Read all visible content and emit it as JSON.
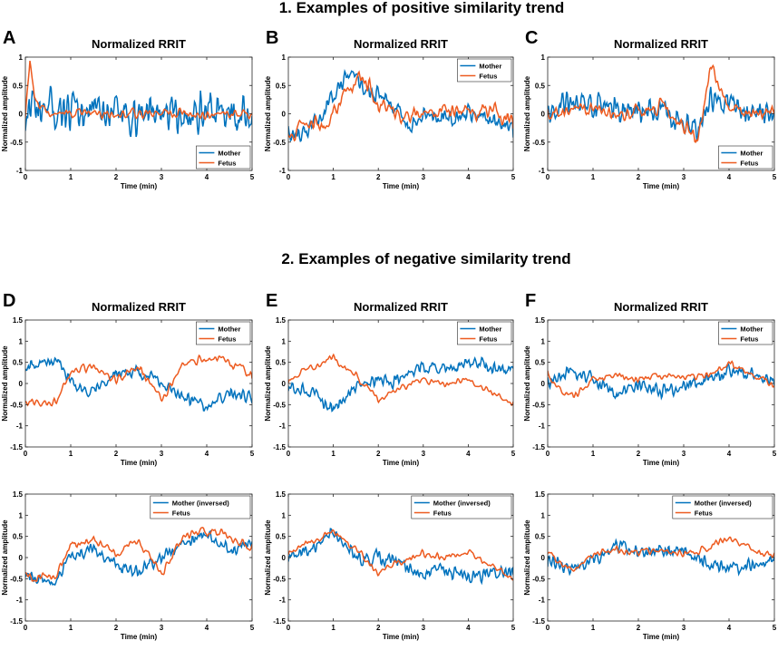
{
  "figure": {
    "section1_title": "1.  Examples of positive similarity trend",
    "section2_title": "2. Examples of negative similarity trend"
  },
  "colors": {
    "mother": "#0072BD",
    "fetus": "#ED5B20"
  },
  "chart_data": [
    {
      "id": "A",
      "letter": "A",
      "type": "line",
      "title": "Normalized RRIT",
      "xlabel": "Time (min)",
      "ylabel": "Normalized amplitude",
      "xlim": [
        0,
        5
      ],
      "ylim": [
        -1,
        1
      ],
      "xticks": [
        0,
        1,
        2,
        3,
        4,
        5
      ],
      "yticks": [
        "-1",
        "-0.5",
        "0",
        "0.5",
        "1"
      ],
      "legend_position": "bottom-right",
      "series": [
        {
          "name": "Mother",
          "color": "#0072BD",
          "amp": 0.48,
          "smooth": 1,
          "seed": 11,
          "x": [
            0,
            0.5,
            1,
            1.5,
            2,
            2.5,
            3,
            3.5,
            4,
            4.5,
            5
          ],
          "y": [
            0,
            0.05,
            -0.05,
            0.1,
            0,
            -0.05,
            0.05,
            0,
            0.05,
            0.1,
            0
          ]
        },
        {
          "name": "Fetus",
          "color": "#ED5B20",
          "amp": 0.1,
          "smooth": 3,
          "seed": 12,
          "x": [
            0,
            0.1,
            0.2,
            0.5,
            1,
            1.5,
            2,
            2.5,
            3,
            3.5,
            4,
            4.5,
            5
          ],
          "y": [
            0,
            0.9,
            0.2,
            0,
            0,
            0.05,
            -0.05,
            0,
            0.05,
            0,
            0,
            0,
            -0.05
          ]
        }
      ]
    },
    {
      "id": "B",
      "letter": "B",
      "type": "line",
      "title": "Normalized RRIT",
      "xlabel": "Time (min)",
      "ylabel": "Normalized amplitude",
      "xlim": [
        0,
        5
      ],
      "ylim": [
        -1,
        1
      ],
      "xticks": [
        0,
        1,
        2,
        3,
        4,
        5
      ],
      "yticks": [
        "-1",
        "-0.5",
        "0",
        "0.5",
        "1"
      ],
      "legend_position": "top-right",
      "series": [
        {
          "name": "Mother",
          "color": "#0072BD",
          "amp": 0.22,
          "smooth": 1,
          "seed": 21,
          "x": [
            0,
            0.5,
            1,
            1.3,
            1.7,
            2,
            2.5,
            2.7,
            3,
            3.5,
            4,
            4.5,
            5
          ],
          "y": [
            -0.4,
            -0.3,
            0.3,
            0.7,
            0.5,
            0.3,
            0.1,
            -0.3,
            0,
            -0.1,
            0,
            -0.1,
            -0.2
          ]
        },
        {
          "name": "Fetus",
          "color": "#ED5B20",
          "amp": 0.15,
          "smooth": 2,
          "seed": 22,
          "x": [
            0,
            0.3,
            0.8,
            1.2,
            1.6,
            1.8,
            2,
            2.5,
            3,
            3.5,
            4,
            4.5,
            5
          ],
          "y": [
            -0.6,
            -0.2,
            -0.2,
            0.3,
            0.6,
            0.5,
            0.1,
            -0.05,
            0,
            0.05,
            0,
            0.05,
            -0.1
          ]
        }
      ]
    },
    {
      "id": "C",
      "letter": "C",
      "type": "line",
      "title": "Normalized RRIT",
      "xlabel": "Time (min)",
      "ylabel": "Normalized amplitude",
      "xlim": [
        0,
        5
      ],
      "ylim": [
        -1,
        1
      ],
      "xticks": [
        0,
        1,
        2,
        3,
        4,
        5
      ],
      "yticks": [
        "-1",
        "-0.5",
        "0",
        "0.5",
        "1"
      ],
      "legend_position": "bottom-right",
      "series": [
        {
          "name": "Mother",
          "color": "#0072BD",
          "amp": 0.32,
          "smooth": 1,
          "seed": 31,
          "x": [
            0,
            0.5,
            1,
            1.5,
            2,
            2.5,
            3,
            3.3,
            3.6,
            4,
            4.5,
            5
          ],
          "y": [
            0,
            0.2,
            0.15,
            0.1,
            0,
            0.1,
            -0.15,
            -0.35,
            0.3,
            0.2,
            0,
            0
          ]
        },
        {
          "name": "Fetus",
          "color": "#ED5B20",
          "amp": 0.12,
          "smooth": 2,
          "seed": 32,
          "x": [
            0,
            0.5,
            1,
            1.5,
            2,
            2.5,
            3,
            3.3,
            3.6,
            3.75,
            4,
            4.5,
            5
          ],
          "y": [
            0,
            0.05,
            0.05,
            -0.05,
            0.05,
            0.15,
            -0.2,
            -0.5,
            0.9,
            0.5,
            0.1,
            0,
            0
          ]
        }
      ]
    },
    {
      "id": "D",
      "letter": "D",
      "type": "line",
      "title": "Normalized RRIT",
      "xlabel": "Time (min)",
      "ylabel": "Normalized amplitude",
      "xlim": [
        0,
        5
      ],
      "ylim": [
        -1.5,
        1.5
      ],
      "xticks": [
        0,
        1,
        2,
        3,
        4,
        5
      ],
      "yticks": [
        "-1.5",
        "-1",
        "-0.5",
        "0",
        "0.5",
        "1",
        "1.5"
      ],
      "legend_position": "top-right",
      "series": [
        {
          "name": "Mother",
          "color": "#0072BD",
          "amp": 0.2,
          "smooth": 1,
          "seed": 41,
          "x": [
            0,
            0.3,
            0.7,
            1,
            1.5,
            2,
            2.5,
            3,
            3.5,
            4,
            4.5,
            5
          ],
          "y": [
            0.4,
            0.5,
            0.6,
            0,
            -0.2,
            0.2,
            0.3,
            0,
            -0.3,
            -0.6,
            -0.2,
            -0.3
          ]
        },
        {
          "name": "Fetus",
          "color": "#ED5B20",
          "amp": 0.1,
          "smooth": 2,
          "seed": 42,
          "x": [
            0,
            0.3,
            0.7,
            1,
            1.5,
            2,
            2.5,
            3,
            3.5,
            4,
            4.5,
            5
          ],
          "y": [
            -0.4,
            -0.5,
            -0.4,
            0.3,
            0.4,
            0.1,
            0.4,
            -0.4,
            0.5,
            0.6,
            0.5,
            0.2
          ]
        }
      ]
    },
    {
      "id": "E",
      "letter": "E",
      "type": "line",
      "title": "Normalized RRIT",
      "xlabel": "Time (min)",
      "ylabel": "Normalized amplitude",
      "xlim": [
        0,
        5
      ],
      "ylim": [
        -1.5,
        1.5
      ],
      "xticks": [
        0,
        1,
        2,
        3,
        4,
        5
      ],
      "yticks": [
        "-1.5",
        "-1",
        "-0.5",
        "0",
        "0.5",
        "1",
        "1.5"
      ],
      "legend_position": "top-right",
      "series": [
        {
          "name": "Mother",
          "color": "#0072BD",
          "amp": 0.22,
          "smooth": 1,
          "seed": 51,
          "x": [
            0,
            0.5,
            1,
            1.5,
            2,
            2.5,
            3,
            3.5,
            4,
            4.5,
            5
          ],
          "y": [
            0,
            -0.2,
            -0.6,
            0,
            0,
            0.1,
            0.4,
            0.3,
            0.5,
            0.4,
            0.3
          ]
        },
        {
          "name": "Fetus",
          "color": "#ED5B20",
          "amp": 0.08,
          "smooth": 2,
          "seed": 52,
          "x": [
            0,
            0.5,
            1,
            1.5,
            2,
            2.5,
            3,
            3.5,
            4,
            4.5,
            5
          ],
          "y": [
            0.1,
            0.4,
            0.6,
            0.2,
            -0.4,
            -0.1,
            0.1,
            0,
            0.1,
            -0.2,
            -0.5
          ]
        }
      ]
    },
    {
      "id": "F",
      "letter": "F",
      "type": "line",
      "title": "Normalized RRIT",
      "xlabel": "Time (min)",
      "ylabel": "Normalized amplitude",
      "xlim": [
        0,
        5
      ],
      "ylim": [
        -1.5,
        1.5
      ],
      "xticks": [
        0,
        1,
        2,
        3,
        4,
        5
      ],
      "yticks": [
        "-1.5",
        "-1",
        "-0.5",
        "0",
        "0.5",
        "1",
        "1.5"
      ],
      "legend_position": "top-right",
      "series": [
        {
          "name": "Mother",
          "color": "#0072BD",
          "amp": 0.22,
          "smooth": 1,
          "seed": 61,
          "x": [
            0,
            0.5,
            1,
            1.5,
            2,
            2.5,
            3,
            3.5,
            4,
            4.5,
            5
          ],
          "y": [
            0,
            0.3,
            0.1,
            -0.3,
            -0.1,
            -0.2,
            -0.1,
            0.1,
            0.3,
            0.2,
            0.1
          ]
        },
        {
          "name": "Fetus",
          "color": "#ED5B20",
          "amp": 0.08,
          "smooth": 2,
          "seed": 62,
          "x": [
            0,
            0.3,
            0.6,
            1,
            1.5,
            2,
            2.5,
            3,
            3.5,
            4,
            4.5,
            5
          ],
          "y": [
            0.2,
            -0.2,
            -0.3,
            0.1,
            0.2,
            0.1,
            0.2,
            0.1,
            0.2,
            0.5,
            0.2,
            0
          ]
        }
      ]
    },
    {
      "id": "D2",
      "letter": "",
      "type": "line",
      "title": "",
      "xlabel": "Time (min)",
      "ylabel": "Normalized amplitude",
      "xlim": [
        0,
        5
      ],
      "ylim": [
        -1.5,
        1.5
      ],
      "xticks": [
        0,
        1,
        2,
        3,
        4,
        5
      ],
      "yticks": [
        "-1.5",
        "-1",
        "-0.5",
        "0",
        "0.5",
        "1",
        "1.5"
      ],
      "legend_position": "top-right",
      "series": [
        {
          "name": "Mother (inversed)",
          "color": "#0072BD",
          "amp": 0.2,
          "smooth": 1,
          "seed": 71,
          "x": [
            0,
            0.3,
            0.7,
            1,
            1.5,
            2,
            2.5,
            3,
            3.5,
            4,
            4.5,
            5
          ],
          "y": [
            -0.4,
            -0.5,
            -0.6,
            0,
            0.2,
            -0.2,
            -0.3,
            0,
            0.3,
            0.6,
            0.2,
            0.3
          ]
        },
        {
          "name": "Fetus",
          "color": "#ED5B20",
          "amp": 0.1,
          "smooth": 2,
          "seed": 72,
          "x": [
            0,
            0.3,
            0.7,
            1,
            1.5,
            2,
            2.5,
            3,
            3.5,
            4,
            4.5,
            5
          ],
          "y": [
            -0.4,
            -0.5,
            -0.4,
            0.3,
            0.4,
            0.1,
            0.4,
            -0.4,
            0.5,
            0.6,
            0.5,
            0.2
          ]
        }
      ]
    },
    {
      "id": "E2",
      "letter": "",
      "type": "line",
      "title": "",
      "xlabel": "Time (min)",
      "ylabel": "Normalized amplitude",
      "xlim": [
        0,
        5
      ],
      "ylim": [
        -1.5,
        1.5
      ],
      "xticks": [
        0,
        1,
        2,
        3,
        4,
        5
      ],
      "yticks": [
        "-1.5",
        "-1",
        "-0.5",
        "0",
        "0.5",
        "1",
        "1.5"
      ],
      "legend_position": "top-right",
      "series": [
        {
          "name": "Mother (inversed)",
          "color": "#0072BD",
          "amp": 0.22,
          "smooth": 1,
          "seed": 81,
          "x": [
            0,
            0.5,
            1,
            1.5,
            2,
            2.5,
            3,
            3.5,
            4,
            4.5,
            5
          ],
          "y": [
            0,
            0.2,
            0.6,
            0,
            0,
            -0.1,
            -0.4,
            -0.3,
            -0.5,
            -0.4,
            -0.3
          ]
        },
        {
          "name": "Fetus",
          "color": "#ED5B20",
          "amp": 0.08,
          "smooth": 2,
          "seed": 82,
          "x": [
            0,
            0.5,
            1,
            1.5,
            2,
            2.5,
            3,
            3.5,
            4,
            4.5,
            5
          ],
          "y": [
            0.1,
            0.4,
            0.6,
            0.2,
            -0.4,
            -0.1,
            0.1,
            0,
            0.1,
            -0.2,
            -0.5
          ]
        }
      ]
    },
    {
      "id": "F2",
      "letter": "",
      "type": "line",
      "title": "",
      "xlabel": "Time (min)",
      "ylabel": "Normalized amplitude",
      "xlim": [
        0,
        5
      ],
      "ylim": [
        -1.5,
        1.5
      ],
      "xticks": [
        0,
        1,
        2,
        3,
        4,
        5
      ],
      "yticks": [
        "-1.5",
        "-1",
        "-0.5",
        "0",
        "0.5",
        "1",
        "1.5"
      ],
      "legend_position": "top-right",
      "series": [
        {
          "name": "Mother (inversed)",
          "color": "#0072BD",
          "amp": 0.22,
          "smooth": 1,
          "seed": 91,
          "x": [
            0,
            0.5,
            1,
            1.5,
            2,
            2.5,
            3,
            3.5,
            4,
            4.5,
            5
          ],
          "y": [
            0,
            -0.3,
            -0.1,
            0.3,
            0.1,
            0.2,
            0.1,
            -0.1,
            -0.3,
            -0.2,
            -0.1
          ]
        },
        {
          "name": "Fetus",
          "color": "#ED5B20",
          "amp": 0.08,
          "smooth": 2,
          "seed": 92,
          "x": [
            0,
            0.3,
            0.6,
            1,
            1.5,
            2,
            2.5,
            3,
            3.5,
            4,
            4.5,
            5
          ],
          "y": [
            0.2,
            -0.2,
            -0.3,
            0.1,
            0.2,
            0.1,
            0.2,
            0.1,
            0.2,
            0.5,
            0.2,
            0
          ]
        }
      ]
    }
  ]
}
